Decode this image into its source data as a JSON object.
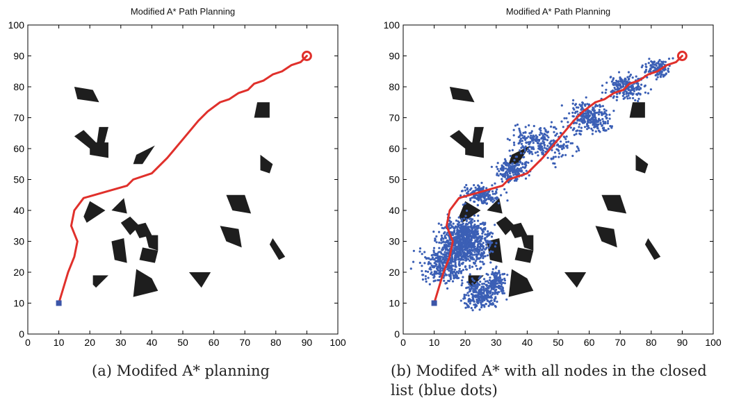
{
  "figure": {
    "captions": {
      "a": "(a) Modifed A* planning",
      "b": "(b) Modifed A* with all nodes in the closed list (blue dots)"
    }
  },
  "colors": {
    "path": "#e0302b",
    "nodes": "#3b5fb5",
    "obstacle": "#1e1e1e",
    "start": "#3b55a8",
    "goal": "#e0302b"
  },
  "chart_data": [
    {
      "type": "line",
      "title": "Modified A* Path Planning",
      "xlabel": "",
      "ylabel": "",
      "xlim": [
        0,
        100
      ],
      "ylim": [
        0,
        100
      ],
      "xticks": [
        0,
        10,
        20,
        30,
        40,
        50,
        60,
        70,
        80,
        90,
        100
      ],
      "yticks": [
        0,
        10,
        20,
        30,
        40,
        50,
        60,
        70,
        80,
        90,
        100
      ],
      "grid": false,
      "start": [
        10,
        10
      ],
      "goal": [
        90,
        90
      ],
      "path": [
        [
          10,
          10
        ],
        [
          13,
          20
        ],
        [
          15,
          25
        ],
        [
          16,
          30
        ],
        [
          14,
          35
        ],
        [
          15,
          40
        ],
        [
          18,
          44
        ],
        [
          25,
          46
        ],
        [
          32,
          48
        ],
        [
          34,
          50
        ],
        [
          40,
          52
        ],
        [
          45,
          57
        ],
        [
          50,
          63
        ],
        [
          55,
          69
        ],
        [
          58,
          72
        ],
        [
          62,
          75
        ],
        [
          65,
          76
        ],
        [
          68,
          78
        ],
        [
          71,
          79
        ],
        [
          73,
          81
        ],
        [
          76,
          82
        ],
        [
          79,
          84
        ],
        [
          82,
          85
        ],
        [
          85,
          87
        ],
        [
          88,
          88
        ],
        [
          90,
          90
        ]
      ],
      "obstacles": [
        [
          [
            15,
            80
          ],
          [
            21,
            79
          ],
          [
            23,
            75
          ],
          [
            16,
            76
          ]
        ],
        [
          [
            15,
            64
          ],
          [
            20,
            60
          ],
          [
            22,
            62
          ],
          [
            18,
            66
          ]
        ],
        [
          [
            23,
            67
          ],
          [
            26,
            67
          ],
          [
            24,
            59
          ],
          [
            22,
            60
          ]
        ],
        [
          [
            20,
            62
          ],
          [
            26,
            62
          ],
          [
            26,
            57
          ],
          [
            20,
            58
          ]
        ],
        [
          [
            37,
            55
          ],
          [
            41,
            61
          ],
          [
            35,
            58
          ],
          [
            34,
            55
          ]
        ],
        [
          [
            74,
            75
          ],
          [
            78,
            75
          ],
          [
            78,
            70
          ],
          [
            73,
            70
          ]
        ],
        [
          [
            75,
            58
          ],
          [
            79,
            55
          ],
          [
            78,
            52
          ],
          [
            75,
            53
          ]
        ],
        [
          [
            64,
            45
          ],
          [
            70,
            45
          ],
          [
            72,
            39
          ],
          [
            66,
            40
          ]
        ],
        [
          [
            62,
            35
          ],
          [
            68,
            34
          ],
          [
            69,
            28
          ],
          [
            64,
            30
          ]
        ],
        [
          [
            79,
            31
          ],
          [
            83,
            25
          ],
          [
            81,
            24
          ],
          [
            78,
            29
          ]
        ],
        [
          [
            20,
            43
          ],
          [
            18,
            38
          ],
          [
            19,
            36
          ],
          [
            25,
            40
          ]
        ],
        [
          [
            28,
            41
          ],
          [
            31,
            44
          ],
          [
            32,
            39
          ],
          [
            27,
            40
          ]
        ],
        [
          [
            30,
            36
          ],
          [
            33,
            38
          ],
          [
            36,
            35
          ],
          [
            33,
            32
          ]
        ],
        [
          [
            34,
            35
          ],
          [
            38,
            36
          ],
          [
            40,
            32
          ],
          [
            36,
            31
          ]
        ],
        [
          [
            38,
            32
          ],
          [
            42,
            32
          ],
          [
            42,
            27
          ],
          [
            39,
            28
          ]
        ],
        [
          [
            27,
            30
          ],
          [
            31,
            31
          ],
          [
            32,
            23
          ],
          [
            28,
            24
          ]
        ],
        [
          [
            37,
            28
          ],
          [
            42,
            27
          ],
          [
            41,
            23
          ],
          [
            36,
            24
          ]
        ],
        [
          [
            35,
            21
          ],
          [
            40,
            18
          ],
          [
            42,
            14
          ],
          [
            34,
            12
          ]
        ],
        [
          [
            21,
            19
          ],
          [
            26,
            19
          ],
          [
            22,
            15
          ],
          [
            21,
            16
          ]
        ],
        [
          [
            52,
            20
          ],
          [
            59,
            20
          ],
          [
            56,
            15
          ]
        ]
      ]
    },
    {
      "type": "scatter",
      "title": "Modified A* Path Planning",
      "xlabel": "",
      "ylabel": "",
      "xlim": [
        0,
        100
      ],
      "ylim": [
        0,
        100
      ],
      "xticks": [
        0,
        10,
        20,
        30,
        40,
        50,
        60,
        70,
        80,
        90,
        100
      ],
      "yticks": [
        0,
        10,
        20,
        30,
        40,
        50,
        60,
        70,
        80,
        90,
        100
      ],
      "grid": false,
      "start": [
        10,
        10
      ],
      "goal": [
        90,
        90
      ],
      "series": [
        {
          "role": "closed-list nodes",
          "regions": [
            {
              "center": [
                20,
                30
              ],
              "spread": [
                8,
                7
              ],
              "count": 900
            },
            {
              "center": [
                13,
                22
              ],
              "spread": [
                8,
                6
              ],
              "count": 300
            },
            {
              "center": [
                25,
                13
              ],
              "spread": [
                6,
                5
              ],
              "count": 260
            },
            {
              "center": [
                30,
                17
              ],
              "spread": [
                3,
                4
              ],
              "count": 120
            },
            {
              "center": [
                25,
                45
              ],
              "spread": [
                6,
                3
              ],
              "count": 180
            },
            {
              "center": [
                35,
                53
              ],
              "spread": [
                5,
                4
              ],
              "count": 180
            },
            {
              "center": [
                45,
                62
              ],
              "spread": [
                10,
                6
              ],
              "count": 260
            },
            {
              "center": [
                60,
                70
              ],
              "spread": [
                7,
                5
              ],
              "count": 260
            },
            {
              "center": [
                72,
                80
              ],
              "spread": [
                6,
                4
              ],
              "count": 200
            },
            {
              "center": [
                82,
                86
              ],
              "spread": [
                5,
                3
              ],
              "count": 120
            }
          ]
        }
      ],
      "path": [
        [
          10,
          10
        ],
        [
          13,
          20
        ],
        [
          15,
          25
        ],
        [
          16,
          30
        ],
        [
          14,
          35
        ],
        [
          15,
          40
        ],
        [
          18,
          44
        ],
        [
          25,
          46
        ],
        [
          32,
          48
        ],
        [
          34,
          50
        ],
        [
          40,
          52
        ],
        [
          45,
          57
        ],
        [
          50,
          63
        ],
        [
          55,
          69
        ],
        [
          58,
          72
        ],
        [
          62,
          75
        ],
        [
          65,
          76
        ],
        [
          68,
          78
        ],
        [
          71,
          79
        ],
        [
          73,
          81
        ],
        [
          76,
          82
        ],
        [
          79,
          84
        ],
        [
          82,
          85
        ],
        [
          85,
          87
        ],
        [
          88,
          88
        ],
        [
          90,
          90
        ]
      ],
      "obstacles": [
        [
          [
            15,
            80
          ],
          [
            21,
            79
          ],
          [
            23,
            75
          ],
          [
            16,
            76
          ]
        ],
        [
          [
            15,
            64
          ],
          [
            20,
            60
          ],
          [
            22,
            62
          ],
          [
            18,
            66
          ]
        ],
        [
          [
            23,
            67
          ],
          [
            26,
            67
          ],
          [
            24,
            59
          ],
          [
            22,
            60
          ]
        ],
        [
          [
            20,
            62
          ],
          [
            26,
            62
          ],
          [
            26,
            57
          ],
          [
            20,
            58
          ]
        ],
        [
          [
            37,
            55
          ],
          [
            41,
            61
          ],
          [
            35,
            58
          ],
          [
            34,
            55
          ]
        ],
        [
          [
            74,
            75
          ],
          [
            78,
            75
          ],
          [
            78,
            70
          ],
          [
            73,
            70
          ]
        ],
        [
          [
            75,
            58
          ],
          [
            79,
            55
          ],
          [
            78,
            52
          ],
          [
            75,
            53
          ]
        ],
        [
          [
            64,
            45
          ],
          [
            70,
            45
          ],
          [
            72,
            39
          ],
          [
            66,
            40
          ]
        ],
        [
          [
            62,
            35
          ],
          [
            68,
            34
          ],
          [
            69,
            28
          ],
          [
            64,
            30
          ]
        ],
        [
          [
            79,
            31
          ],
          [
            83,
            25
          ],
          [
            81,
            24
          ],
          [
            78,
            29
          ]
        ],
        [
          [
            20,
            43
          ],
          [
            18,
            38
          ],
          [
            19,
            36
          ],
          [
            25,
            40
          ]
        ],
        [
          [
            28,
            41
          ],
          [
            31,
            44
          ],
          [
            32,
            39
          ],
          [
            27,
            40
          ]
        ],
        [
          [
            30,
            36
          ],
          [
            33,
            38
          ],
          [
            36,
            35
          ],
          [
            33,
            32
          ]
        ],
        [
          [
            34,
            35
          ],
          [
            38,
            36
          ],
          [
            40,
            32
          ],
          [
            36,
            31
          ]
        ],
        [
          [
            38,
            32
          ],
          [
            42,
            32
          ],
          [
            42,
            27
          ],
          [
            39,
            28
          ]
        ],
        [
          [
            27,
            30
          ],
          [
            31,
            31
          ],
          [
            32,
            23
          ],
          [
            28,
            24
          ]
        ],
        [
          [
            37,
            28
          ],
          [
            42,
            27
          ],
          [
            41,
            23
          ],
          [
            36,
            24
          ]
        ],
        [
          [
            35,
            21
          ],
          [
            40,
            18
          ],
          [
            42,
            14
          ],
          [
            34,
            12
          ]
        ],
        [
          [
            21,
            19
          ],
          [
            26,
            19
          ],
          [
            22,
            15
          ],
          [
            21,
            16
          ]
        ],
        [
          [
            52,
            20
          ],
          [
            59,
            20
          ],
          [
            56,
            15
          ]
        ]
      ]
    }
  ]
}
